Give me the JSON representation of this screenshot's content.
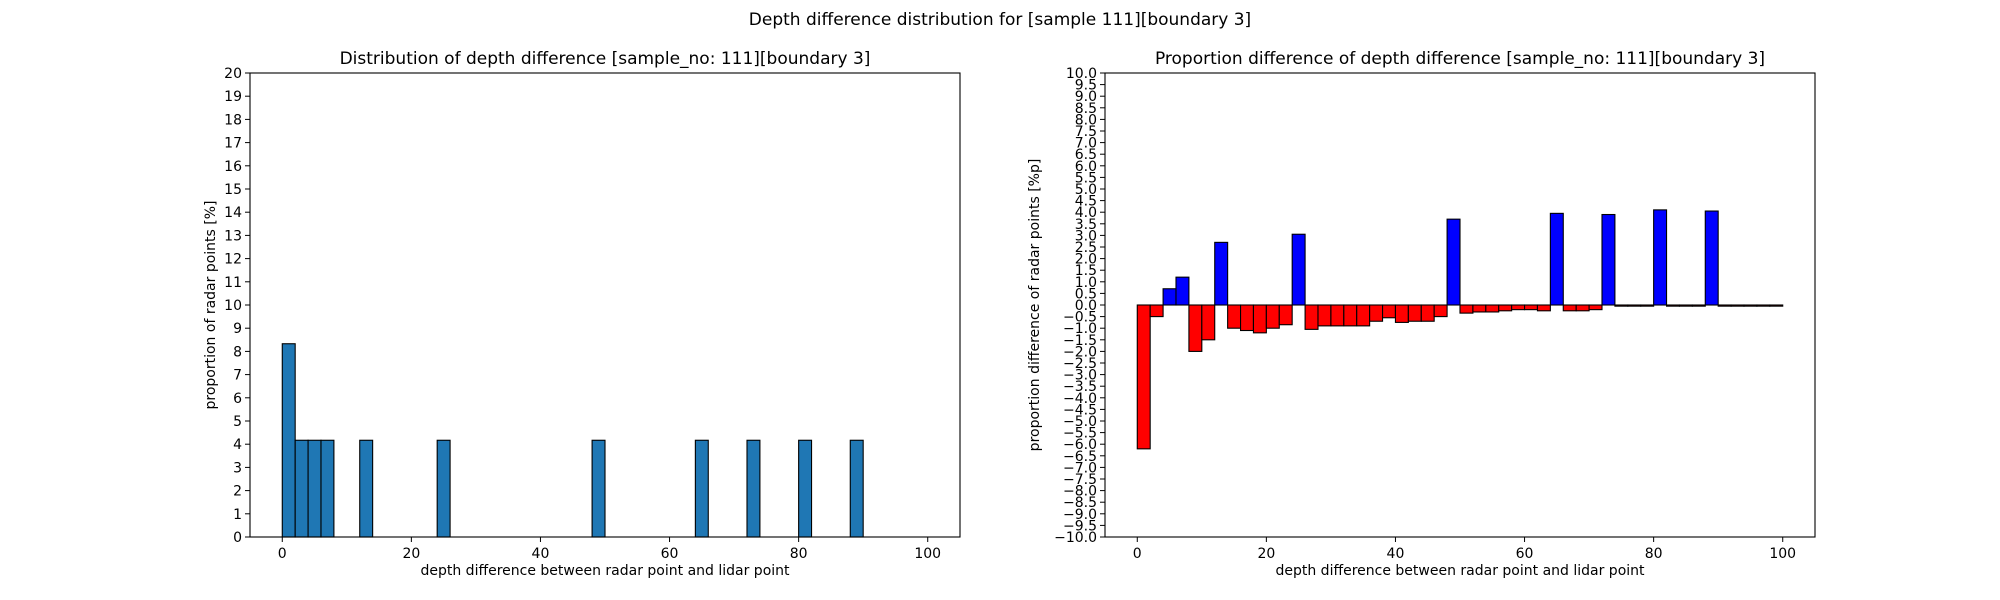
{
  "suptitle": "Depth difference distribution for [sample 111][boundary 3]",
  "chart_data": [
    {
      "type": "bar",
      "title": "Distribution of depth difference [sample_no: 111][boundary 3]",
      "xlabel": "depth difference between radar point and lidar point",
      "ylabel": "proportion of radar points [%]",
      "xlim": [
        -5,
        105
      ],
      "ylim": [
        0,
        20
      ],
      "xticks": [
        0,
        20,
        40,
        60,
        80,
        100
      ],
      "yticks": [
        0,
        1,
        2,
        3,
        4,
        5,
        6,
        7,
        8,
        9,
        10,
        11,
        12,
        13,
        14,
        15,
        16,
        17,
        18,
        19,
        20
      ],
      "bar_width": 2,
      "bar_color": "#1f77b4",
      "x": [
        1,
        3,
        5,
        7,
        13,
        25,
        49,
        65,
        73,
        81,
        89
      ],
      "values": [
        8.33,
        4.17,
        4.17,
        4.17,
        4.17,
        4.17,
        4.17,
        4.17,
        4.17,
        4.17,
        4.17
      ],
      "grid": false
    },
    {
      "type": "bar",
      "title": "Proportion difference of depth difference [sample_no: 111][boundary 3]",
      "xlabel": "depth difference between radar point and lidar point",
      "ylabel": "proportion difference of radar points [%p]",
      "xlim": [
        -5,
        105
      ],
      "ylim": [
        -10,
        10
      ],
      "xticks": [
        0,
        20,
        40,
        60,
        80,
        100
      ],
      "yticks": [
        -10.0,
        -9.5,
        -9.0,
        -8.5,
        -8.0,
        -7.5,
        -7.0,
        -6.5,
        -6.0,
        -5.5,
        -5.0,
        -4.5,
        -4.0,
        -3.5,
        -3.0,
        -2.5,
        -2.0,
        -1.5,
        -1.0,
        -0.5,
        0.0,
        0.5,
        1.0,
        1.5,
        2.0,
        2.5,
        3.0,
        3.5,
        4.0,
        4.5,
        5.0,
        5.5,
        6.0,
        6.5,
        7.0,
        7.5,
        8.0,
        8.5,
        9.0,
        9.5,
        10.0
      ],
      "bar_width": 2,
      "positive_color": "#0000ff",
      "negative_color": "#ff0000",
      "x": [
        1,
        3,
        5,
        7,
        9,
        11,
        13,
        15,
        17,
        19,
        21,
        23,
        25,
        27,
        29,
        31,
        33,
        35,
        37,
        39,
        41,
        43,
        45,
        47,
        49,
        51,
        53,
        55,
        57,
        59,
        61,
        63,
        65,
        67,
        69,
        71,
        73,
        75,
        77,
        79,
        81,
        83,
        85,
        87,
        89,
        91,
        93,
        95,
        97,
        99
      ],
      "values": [
        -6.2,
        -0.5,
        0.7,
        1.2,
        -2.0,
        -1.5,
        2.7,
        -1.0,
        -1.1,
        -1.2,
        -1.0,
        -0.85,
        3.05,
        -1.05,
        -0.9,
        -0.9,
        -0.9,
        -0.9,
        -0.7,
        -0.55,
        -0.75,
        -0.7,
        -0.7,
        -0.5,
        3.7,
        -0.35,
        -0.3,
        -0.3,
        -0.25,
        -0.2,
        -0.2,
        -0.25,
        3.95,
        -0.25,
        -0.25,
        -0.2,
        3.9,
        -0.05,
        -0.05,
        -0.05,
        4.1,
        -0.05,
        -0.05,
        -0.05,
        4.05,
        -0.05,
        -0.05,
        -0.05,
        -0.05,
        -0.05
      ],
      "grid": false
    }
  ]
}
